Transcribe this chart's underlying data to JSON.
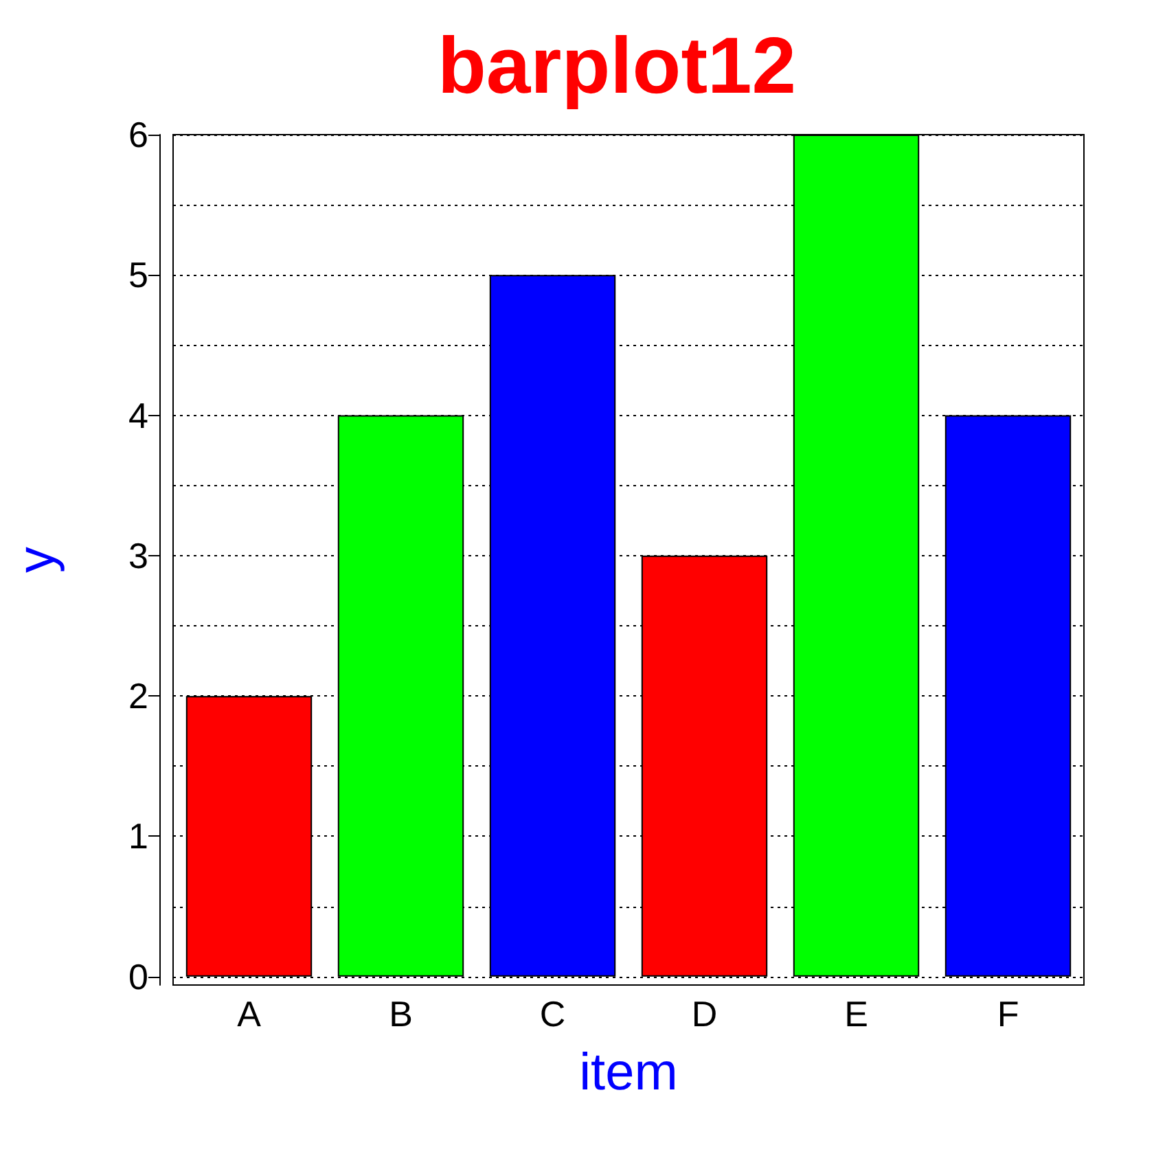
{
  "chart_data": {
    "type": "bar",
    "title": "barplot12",
    "xlabel": "item",
    "ylabel": "y",
    "categories": [
      "A",
      "B",
      "C",
      "D",
      "E",
      "F"
    ],
    "values": [
      2,
      4,
      5,
      3,
      6,
      4
    ],
    "colors": [
      "#ff0000",
      "#00ff00",
      "#0000ff",
      "#ff0000",
      "#00ff00",
      "#0000ff"
    ],
    "ylim": [
      -0.06,
      6
    ],
    "yticks": [
      0,
      {
        "value": 0.5,
        "label": null
      },
      1,
      {
        "value": 1.5,
        "label": null
      },
      2,
      {
        "value": 2.5,
        "label": null
      },
      3,
      {
        "value": 3.5,
        "label": null
      },
      4,
      {
        "value": 4.5,
        "label": null
      },
      5,
      {
        "value": 5.5,
        "label": null
      },
      6
    ],
    "grid": "y"
  }
}
